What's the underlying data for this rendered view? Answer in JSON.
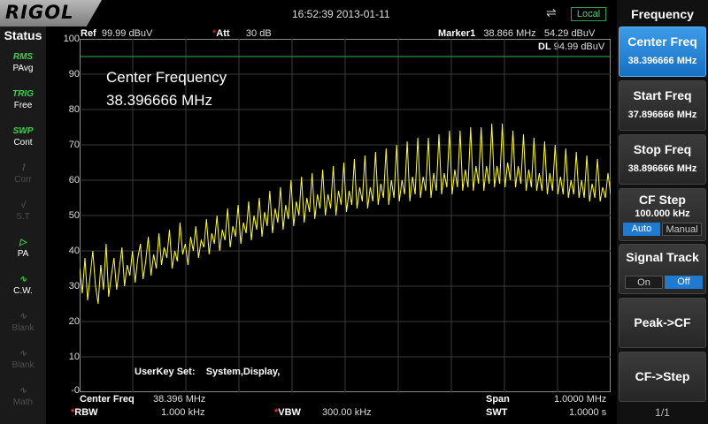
{
  "topbar": {
    "brand": "RIGOL",
    "datetime": "16:52:39 2013-01-11",
    "usb_glyph": "⇌",
    "local_label": "Local"
  },
  "status_panel": {
    "title": "Status",
    "items": [
      {
        "icon": "RMS",
        "label": "PAvg",
        "active": true
      },
      {
        "icon": "TRIG",
        "label": "Free",
        "active": true
      },
      {
        "icon": "SWP",
        "label": "Cont",
        "active": true
      },
      {
        "icon": "⌇",
        "label": "Corr",
        "active": false
      },
      {
        "icon": "√",
        "label": "S.T",
        "active": false
      },
      {
        "icon": "▷",
        "label": "PA",
        "active": true
      },
      {
        "icon": "∿",
        "label": "C.W.",
        "active": true
      },
      {
        "icon": "∿",
        "label": "Blank",
        "active": false
      },
      {
        "icon": "∿",
        "label": "Blank",
        "active": false
      },
      {
        "icon": "∿",
        "label": "Math",
        "active": false
      }
    ]
  },
  "header": {
    "ref_label": "Ref",
    "ref_value": "99.99 dBuV",
    "att_mark": "*",
    "att_label": "Att",
    "att_value": "30 dB",
    "marker_label": "Marker1",
    "marker_freq": "38.866 MHz",
    "marker_level": "54.29 dBuV",
    "dl_label": "DL",
    "dl_value": "94.99 dBuV"
  },
  "overlay": {
    "title": "Center Frequency",
    "value": "38.396666 MHz"
  },
  "userkey": {
    "label": "UserKey Set:",
    "value": "System,Display,"
  },
  "footer": {
    "center_label": "Center Freq",
    "center_value": "38.396 MHz",
    "span_label": "Span",
    "span_value": "1.0000 MHz",
    "rbw_mark": "*",
    "rbw_label": "RBW",
    "rbw_value": "1.000 kHz",
    "vbw_mark": "*",
    "vbw_label": "VBW",
    "vbw_value": "300.00 kHz",
    "swt_label": "SWT",
    "swt_value": "1.0000 s"
  },
  "chart_data": {
    "type": "line",
    "ylim": [
      0,
      100
    ],
    "yticks": [
      "100",
      "90",
      "80",
      "70",
      "60",
      "50",
      "40",
      "30",
      "20",
      "10",
      "-0"
    ],
    "display_line": 94.99,
    "trace_color": "#ffff33",
    "grid": true,
    "series": [
      {
        "values": [
          35,
          28,
          38,
          26,
          33,
          40,
          30,
          25,
          36,
          29,
          42,
          27,
          33,
          38,
          29,
          35,
          41,
          30,
          36,
          33,
          40,
          31,
          38,
          42,
          32,
          37,
          44,
          33,
          39,
          35,
          45,
          36,
          41,
          38,
          46,
          35,
          40,
          37,
          48,
          39,
          42,
          36,
          44,
          40,
          47,
          38,
          43,
          41,
          49,
          39,
          45,
          42,
          50,
          40,
          46,
          43,
          52,
          41,
          47,
          44,
          53,
          42,
          48,
          45,
          54,
          43,
          50,
          46,
          55,
          44,
          51,
          47,
          57,
          45,
          52,
          48,
          58,
          46,
          53,
          49,
          60,
          47,
          54,
          50,
          61,
          48,
          55,
          51,
          62,
          49,
          56,
          52,
          63,
          50,
          56,
          52,
          64,
          50,
          57,
          53,
          65,
          51,
          57,
          53,
          66,
          52,
          58,
          54,
          67,
          52,
          58,
          54,
          68,
          53,
          59,
          55,
          69,
          53,
          60,
          55,
          70,
          54,
          60,
          56,
          71,
          54,
          61,
          56,
          72,
          55,
          61,
          57,
          72,
          55,
          62,
          57,
          73,
          56,
          62,
          58,
          74,
          56,
          63,
          58,
          74,
          57,
          63,
          58,
          75,
          57,
          64,
          59,
          75,
          57,
          64,
          59,
          76,
          58,
          64,
          59,
          76,
          58,
          65,
          60,
          74,
          58,
          64,
          59,
          73,
          57,
          63,
          58,
          72,
          57,
          62,
          57,
          71,
          56,
          62,
          57,
          70,
          56,
          61,
          56,
          69,
          55,
          60,
          56,
          68,
          55,
          60,
          55,
          67,
          54,
          59,
          55,
          66,
          54,
          58,
          55,
          62,
          56
        ]
      }
    ]
  },
  "menu": {
    "title": "Frequency",
    "buttons": [
      {
        "label": "Center Freq",
        "value": "38.396666 MHz",
        "active": true
      },
      {
        "label": "Start Freq",
        "value": "37.896666 MHz",
        "active": false
      },
      {
        "label": "Stop Freq",
        "value": "38.896666 MHz",
        "active": false
      }
    ],
    "cf_step": {
      "label": "CF Step",
      "value": "100.000 kHz",
      "opt_auto": "Auto",
      "opt_manual": "Manual"
    },
    "signal_track": {
      "label": "Signal Track",
      "opt_on": "On",
      "opt_off": "Off"
    },
    "peak_cf": {
      "label": "Peak->CF"
    },
    "cf_step_btn": {
      "label": "CF->Step"
    },
    "page": "1/1"
  },
  "colors": {
    "accent": "#1e7bd0",
    "trace": "#ffff33",
    "grid": "#3a3a3a",
    "dl_line": "#2fb34a",
    "status_on": "#39d24a"
  }
}
